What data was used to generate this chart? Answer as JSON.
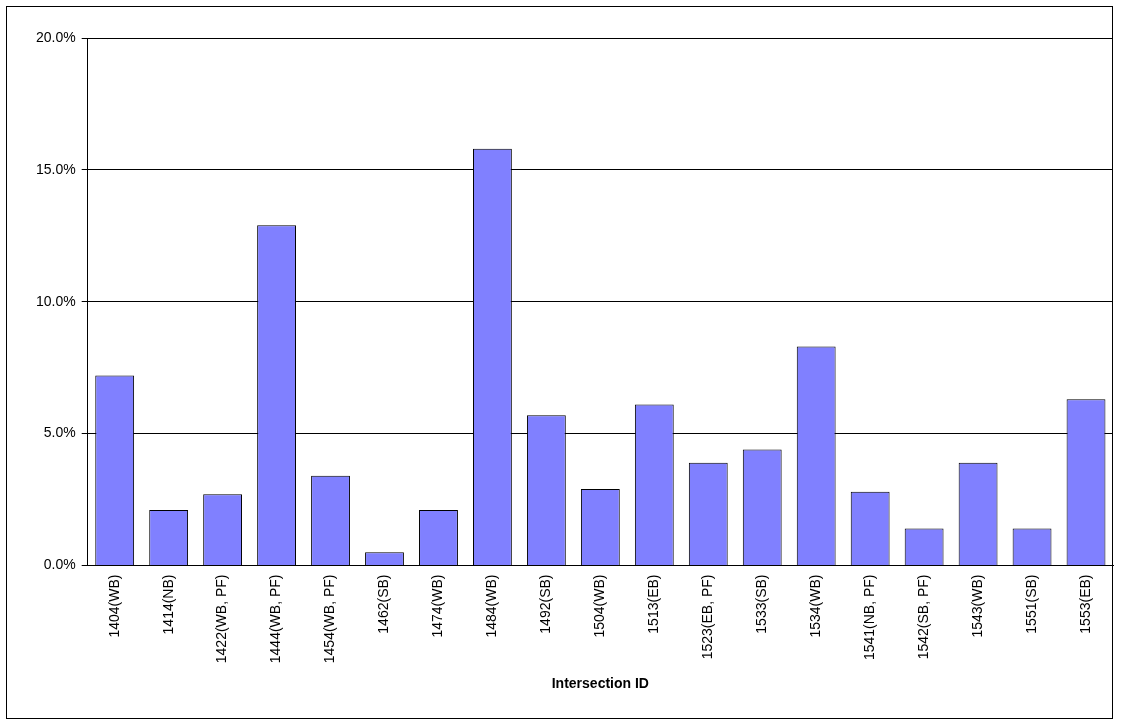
{
  "chart_data": {
    "type": "bar",
    "xlabel": "Intersection ID",
    "categories": [
      "1404(WB)",
      "1414(NB)",
      "1422(WB, PF)",
      "1444(WB, PF)",
      "1454(WB, PF)",
      "1462(SB)",
      "1474(WB)",
      "1484(WB)",
      "1492(SB)",
      "1504(WB)",
      "1513(EB)",
      "1523(EB, PF)",
      "1533(SB)",
      "1534(WB)",
      "1541(NB, PF)",
      "1542(SB, PF)",
      "1543(WB)",
      "1551(SB)",
      "1553(EB)"
    ],
    "values": [
      7.2,
      2.1,
      2.7,
      12.9,
      3.4,
      0.5,
      2.1,
      15.8,
      5.7,
      2.9,
      6.1,
      3.9,
      4.4,
      8.3,
      2.8,
      1.4,
      3.9,
      1.4,
      6.3
    ],
    "color": "#8080ff",
    "ylim": [
      0,
      20
    ],
    "yticks": [
      {
        "value": 0,
        "label": "0.0%"
      },
      {
        "value": 5,
        "label": "5.0%"
      },
      {
        "value": 10,
        "label": "10.0%"
      },
      {
        "value": 15,
        "label": "15.0%"
      },
      {
        "value": 20,
        "label": "20.0%"
      }
    ],
    "grid": "y",
    "legend": false
  }
}
